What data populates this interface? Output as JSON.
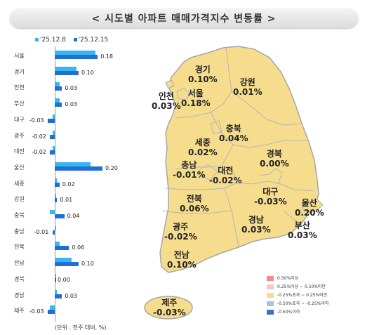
{
  "title": "< 시도별 아파트 매매가격지수 변동률 >",
  "legend": {
    "s1": "'25.12.8",
    "s2": "'25.12.15"
  },
  "unit_note": "(단위 : 전주 대비, %)",
  "colors": {
    "s1": "#38b6f0",
    "s2": "#1f6fd6",
    "map_fill": "#f6dd8e",
    "map_stroke": "#a6a6a6"
  },
  "chart_data": {
    "type": "bar",
    "categories": [
      "서울",
      "경기",
      "인천",
      "부산",
      "대구",
      "광주",
      "대전",
      "울산",
      "세종",
      "강원",
      "충북",
      "충남",
      "전북",
      "전남",
      "경북",
      "경남",
      "제주"
    ],
    "series": [
      {
        "name": "'25.12.8",
        "values": [
          0.17,
          0.09,
          0.02,
          0.02,
          -0.01,
          -0.01,
          -0.01,
          0.15,
          0.01,
          0.0,
          -0.02,
          0.0,
          0.02,
          0.07,
          0.0,
          0.01,
          -0.02
        ]
      },
      {
        "name": "'25.12.15",
        "values": [
          0.18,
          0.1,
          0.03,
          0.03,
          -0.03,
          -0.02,
          -0.02,
          0.2,
          0.02,
          0.01,
          0.04,
          -0.01,
          0.06,
          0.1,
          0.0,
          0.03,
          -0.03
        ]
      }
    ],
    "value_labels": [
      "0.18",
      "0.10",
      "0.03",
      "0.03",
      "-0.03",
      "-0.02",
      "-0.02",
      "0.20",
      "0.02",
      "0.01",
      "0.04",
      "-0.01",
      "0.06",
      "0.10",
      "0.00",
      "0.03",
      "-0.03"
    ]
  },
  "map": {
    "labels": [
      {
        "name": "경기",
        "value": "0.10%"
      },
      {
        "name": "인천",
        "value": "0.03%"
      },
      {
        "name": "서울",
        "value": "0.18%"
      },
      {
        "name": "강원",
        "value": "0.01%"
      },
      {
        "name": "충북",
        "value": "0.04%"
      },
      {
        "name": "세종",
        "value": "0.02%"
      },
      {
        "name": "충남",
        "value": "-0.01%"
      },
      {
        "name": "대전",
        "value": "-0.02%"
      },
      {
        "name": "경북",
        "value": "0.00%"
      },
      {
        "name": "대구",
        "value": "-0.03%"
      },
      {
        "name": "울산",
        "value": "0.20%"
      },
      {
        "name": "전북",
        "value": "0.06%"
      },
      {
        "name": "경남",
        "value": "0.03%"
      },
      {
        "name": "부산",
        "value": "0.03%"
      },
      {
        "name": "광주",
        "value": "-0.02%"
      },
      {
        "name": "전남",
        "value": "0.10%"
      },
      {
        "name": "제주",
        "value": "-0.03%"
      }
    ],
    "legend": [
      {
        "label": "0.50%이상",
        "color": "#f28b8b"
      },
      {
        "label": "0.25%이상 ~ 0.50%미만",
        "color": "#f8c6c0"
      },
      {
        "label": "-0.25%초과 ~ 0.25%미만",
        "color": "#f6dd8e"
      },
      {
        "label": "-0.50%초과 ~ -0.25%이하",
        "color": "#a9c2ea"
      },
      {
        "label": "-0.50%이하",
        "color": "#3f6fc6"
      }
    ]
  }
}
